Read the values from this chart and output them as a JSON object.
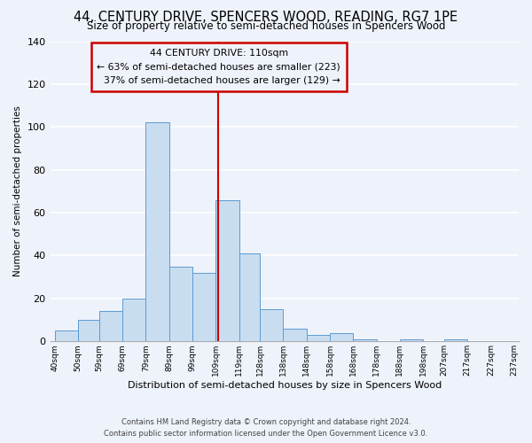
{
  "title": "44, CENTURY DRIVE, SPENCERS WOOD, READING, RG7 1PE",
  "subtitle": "Size of property relative to semi-detached houses in Spencers Wood",
  "xlabel": "Distribution of semi-detached houses by size in Spencers Wood",
  "ylabel": "Number of semi-detached properties",
  "bin_labels": [
    "40sqm",
    "50sqm",
    "59sqm",
    "69sqm",
    "79sqm",
    "89sqm",
    "99sqm",
    "109sqm",
    "119sqm",
    "128sqm",
    "138sqm",
    "148sqm",
    "158sqm",
    "168sqm",
    "178sqm",
    "188sqm",
    "198sqm",
    "207sqm",
    "217sqm",
    "227sqm",
    "237sqm"
  ],
  "bin_left_edges": [
    40,
    50,
    59,
    69,
    79,
    89,
    99,
    109,
    119,
    128,
    138,
    148,
    158,
    168,
    178,
    188,
    198,
    207,
    217,
    227,
    237
  ],
  "bin_counts": [
    5,
    10,
    14,
    20,
    102,
    35,
    32,
    66,
    41,
    15,
    6,
    3,
    4,
    1,
    0,
    1,
    0,
    1,
    0,
    0
  ],
  "bar_color": "#c9ddf0",
  "bar_edge_color": "#5b9bd5",
  "property_value": 110,
  "pct_smaller": 63,
  "pct_larger": 37,
  "n_smaller": 223,
  "n_larger": 129,
  "vline_color": "#cc0000",
  "annotation_box_edge_color": "#cc0000",
  "ylim": [
    0,
    140
  ],
  "yticks": [
    0,
    20,
    40,
    60,
    80,
    100,
    120,
    140
  ],
  "footer1": "Contains HM Land Registry data © Crown copyright and database right 2024.",
  "footer2": "Contains public sector information licensed under the Open Government Licence v3.0.",
  "bg_color": "#eef2fa"
}
